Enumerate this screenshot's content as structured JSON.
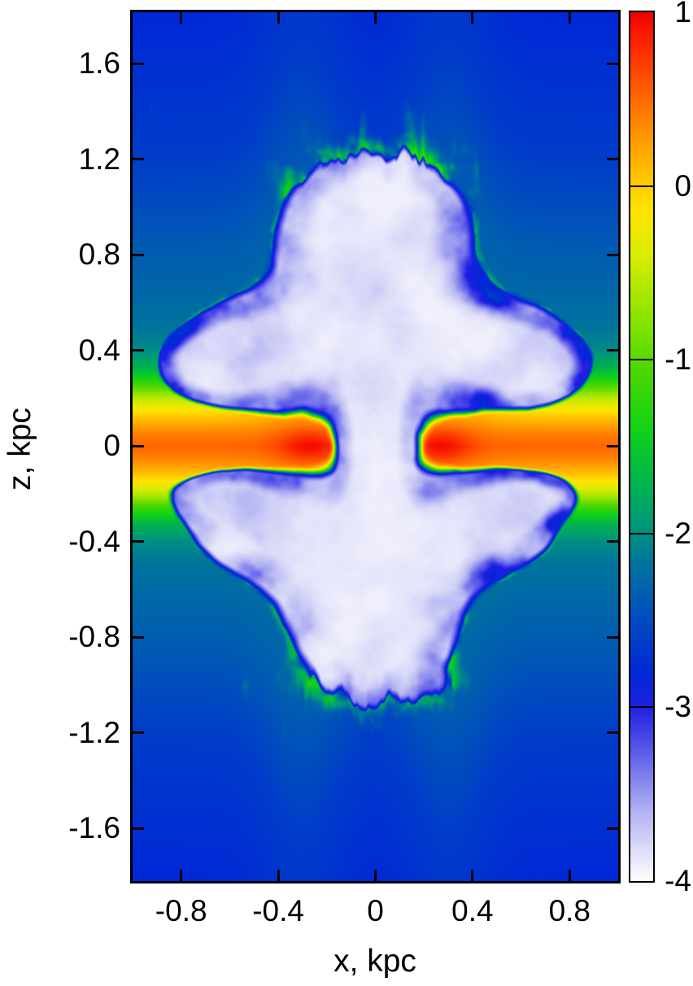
{
  "chart_data": {
    "type": "heatmap",
    "title": "",
    "xlabel": "x, kpc",
    "ylabel": "z, kpc",
    "xlim": [
      -1.0,
      1.0
    ],
    "zlim": [
      -1.82,
      1.815
    ],
    "grid": false,
    "axis_color": "#000000",
    "background": "#ffffff",
    "x_ticks": [
      {
        "label": "-0.8",
        "value": -0.8
      },
      {
        "label": "-0.4",
        "value": -0.4
      },
      {
        "label": "0",
        "value": 0.0
      },
      {
        "label": "0.4",
        "value": 0.4
      },
      {
        "label": "0.8",
        "value": 0.8
      }
    ],
    "z_ticks": [
      {
        "label": "1.6",
        "value": 1.6
      },
      {
        "label": "1.2",
        "value": 1.2
      },
      {
        "label": "0.8",
        "value": 0.8
      },
      {
        "label": "0.4",
        "value": 0.4
      },
      {
        "label": "0",
        "value": 0.0
      },
      {
        "label": "-0.4",
        "value": -0.4
      },
      {
        "label": "-0.8",
        "value": -0.8
      },
      {
        "label": "-1.2",
        "value": -1.2
      },
      {
        "label": "-1.6",
        "value": -1.6
      }
    ],
    "colorbar": {
      "min": -4,
      "max": 1,
      "ticks": [
        {
          "label": "1",
          "value": 1
        },
        {
          "label": "0",
          "value": 0
        },
        {
          "label": "-1",
          "value": -1
        },
        {
          "label": "-2",
          "value": -2
        },
        {
          "label": "-3",
          "value": -3
        },
        {
          "label": "-4",
          "value": -4
        }
      ],
      "palette": [
        [
          -4.0,
          "#ffffff"
        ],
        [
          -3.6,
          "#b2b2f2"
        ],
        [
          -3.25,
          "#5a5aea"
        ],
        [
          -3.0,
          "#1f1fe2"
        ],
        [
          -2.8,
          "#0028d8"
        ],
        [
          -2.45,
          "#0051bb"
        ],
        [
          -2.15,
          "#00789a"
        ],
        [
          -1.95,
          "#00997a"
        ],
        [
          -1.7,
          "#00b44c"
        ],
        [
          -1.4,
          "#12d218"
        ],
        [
          -1.05,
          "#4cd800"
        ],
        [
          -0.75,
          "#8ee400"
        ],
        [
          -0.4,
          "#d9ec00"
        ],
        [
          -0.15,
          "#ffe400"
        ],
        [
          0.05,
          "#ffc400"
        ],
        [
          0.3,
          "#ff9400"
        ],
        [
          0.6,
          "#ff5400"
        ],
        [
          0.85,
          "#fb1e00"
        ],
        [
          1.0,
          "#f00000"
        ]
      ]
    },
    "field_model": {
      "ambient_profile": [
        [
          0.0,
          0.52
        ],
        [
          0.04,
          0.42
        ],
        [
          0.08,
          0.26
        ],
        [
          0.12,
          0.04
        ],
        [
          0.16,
          -0.24
        ],
        [
          0.2,
          -0.55
        ],
        [
          0.24,
          -0.95
        ],
        [
          0.28,
          -1.35
        ],
        [
          0.33,
          -1.72
        ],
        [
          0.4,
          -2.02
        ],
        [
          0.5,
          -2.18
        ],
        [
          0.65,
          -2.28
        ],
        [
          0.85,
          -2.38
        ],
        [
          1.2,
          -2.62
        ],
        [
          1.82,
          -2.8
        ]
      ],
      "disk": {
        "tip_x": 0.27,
        "sigma_x": 0.13,
        "sigma_z": 0.075,
        "boost": 0.42,
        "thicken": 0.35,
        "thicken_center": 0.3,
        "thicken_sigma": 0.18,
        "max_value": 0.95
      },
      "bubble": {
        "threshold": 0.42,
        "blobs": [
          [
            0.0,
            0.6,
            0.46,
            0.48,
            1.0
          ],
          [
            0.0,
            1.0,
            0.34,
            0.2,
            0.6
          ],
          [
            0.0,
            0.0,
            0.11,
            0.5,
            0.8
          ],
          [
            0.0,
            -0.55,
            0.42,
            0.4,
            1.0
          ],
          [
            0.0,
            -0.92,
            0.3,
            0.2,
            0.4
          ],
          [
            -0.55,
            0.38,
            0.3,
            0.22,
            0.8
          ],
          [
            0.55,
            0.38,
            0.3,
            0.22,
            0.8
          ],
          [
            -0.72,
            0.33,
            0.18,
            0.14,
            0.45
          ],
          [
            0.72,
            0.33,
            0.18,
            0.14,
            0.45
          ],
          [
            -0.5,
            -0.32,
            0.3,
            0.2,
            0.8
          ],
          [
            0.5,
            -0.32,
            0.3,
            0.2,
            0.8
          ],
          [
            -0.68,
            -0.2,
            0.2,
            0.1,
            0.5
          ],
          [
            0.68,
            -0.2,
            0.2,
            0.1,
            0.5
          ]
        ],
        "interior_floor": -3.95,
        "lining_value": -3.0,
        "rim_value": -1.15,
        "fingers_top_window": [
          1.05,
          1.2,
          1.38,
          1.6
        ],
        "fingers_bottom_window": [
          0.9,
          1.02,
          1.18,
          1.42
        ]
      }
    }
  }
}
